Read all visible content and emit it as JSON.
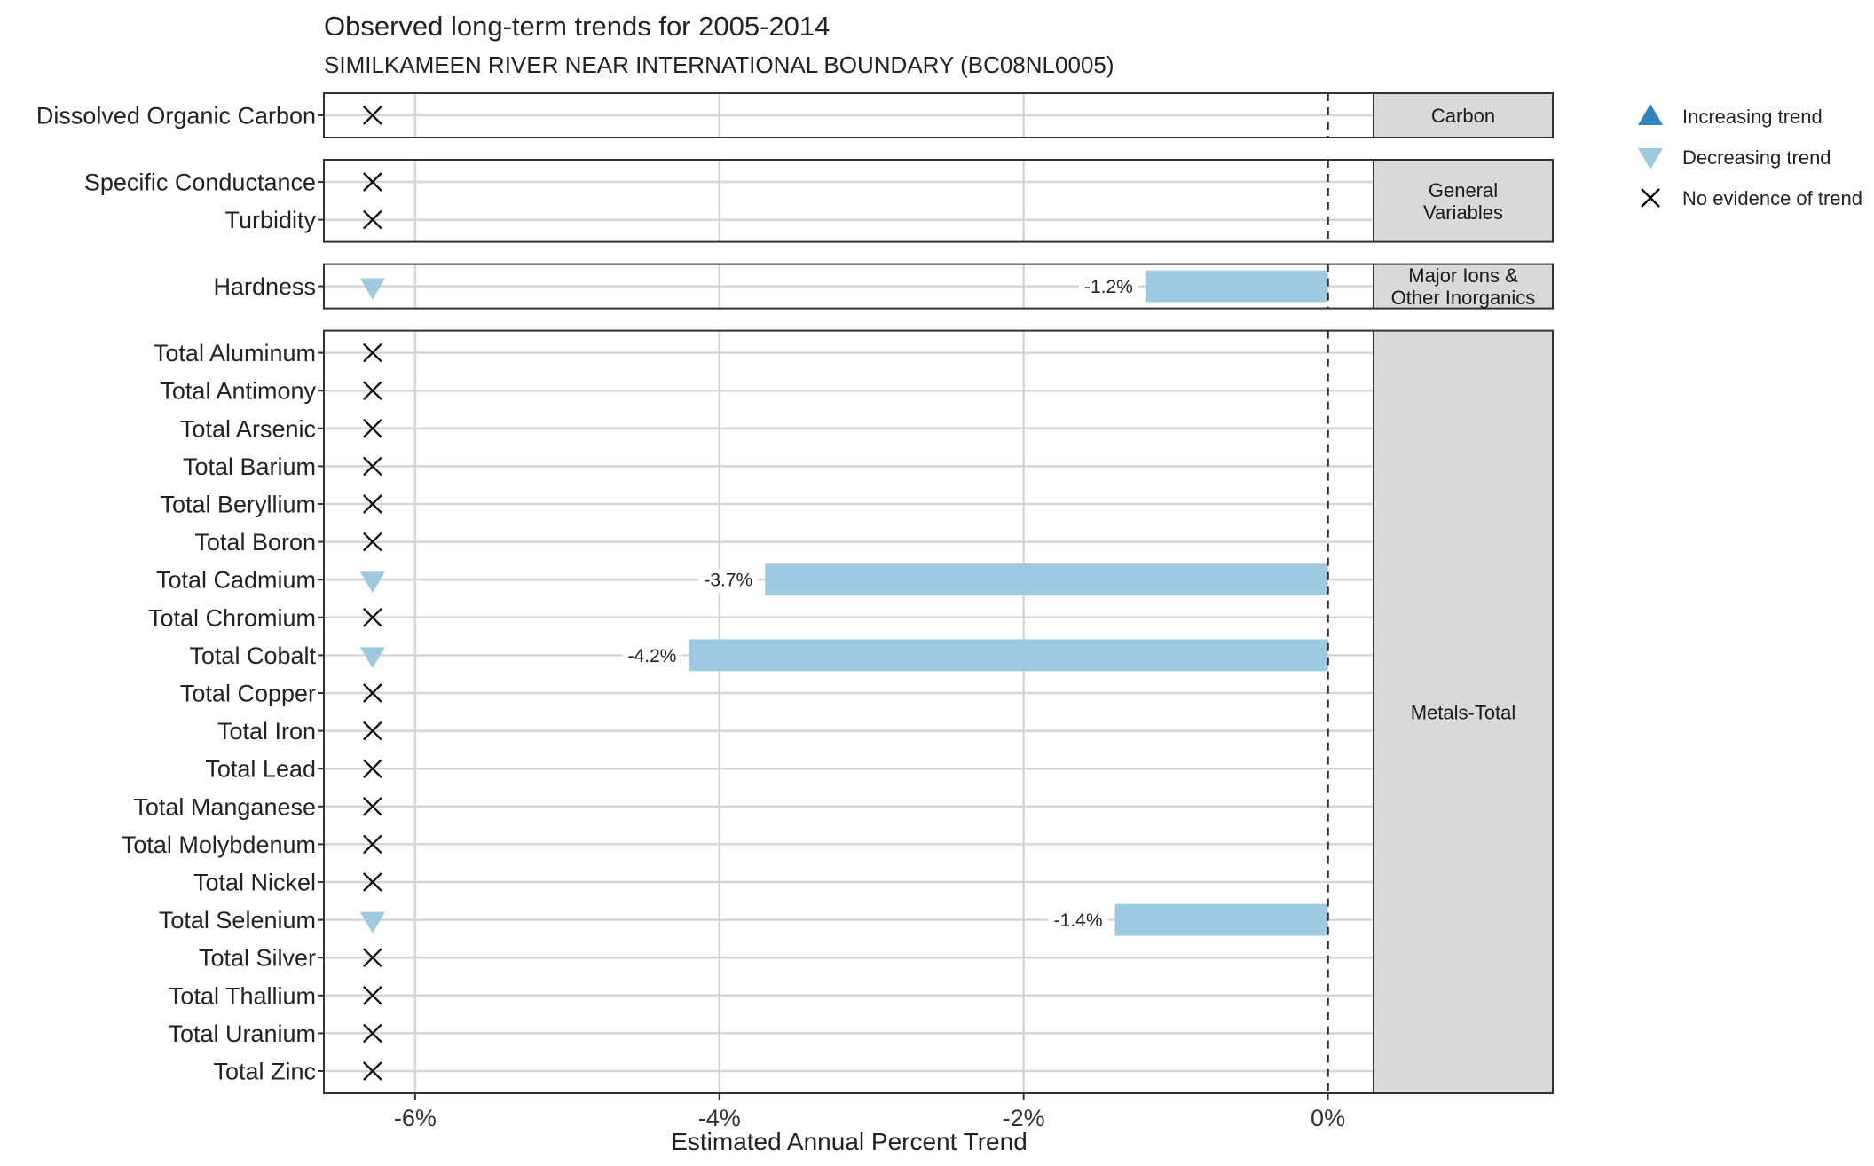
{
  "chart_data": {
    "type": "bar",
    "title": "Observed long-term trends for 2005-2014",
    "subtitle": "SIMILKAMEEN RIVER NEAR INTERNATIONAL BOUNDARY (BC08NL0005)",
    "xlabel": "Estimated Annual Percent Trend",
    "ylabel": "",
    "xlim": [
      -6.6,
      0.3
    ],
    "x_ticks": [
      -6,
      -4,
      -2,
      0
    ],
    "x_tick_labels": [
      "-6%",
      "-4%",
      "-2%",
      "0%"
    ],
    "grid": true,
    "reference_line": 0,
    "legend": {
      "placement": "right",
      "entries": [
        {
          "label": "Increasing trend",
          "marker": "triangle-up",
          "color": "#3182bd"
        },
        {
          "label": "Decreasing trend",
          "marker": "triangle-down",
          "color": "#9ecae1"
        },
        {
          "label": "No evidence of trend",
          "marker": "cross",
          "color": "#000000"
        }
      ]
    },
    "colors": {
      "bar": "#9ecae1",
      "increasing": "#3182bd",
      "decreasing": "#9ecae1",
      "panel_strip": "#d9d9d9"
    },
    "panels": [
      {
        "name": "Carbon",
        "strip_lines": [
          "Carbon"
        ],
        "rows": [
          {
            "label": "Dissolved Organic Carbon",
            "trend": "none",
            "value": null,
            "value_label": ""
          }
        ]
      },
      {
        "name": "General Variables",
        "strip_lines": [
          "General",
          "Variables"
        ],
        "rows": [
          {
            "label": "Specific Conductance",
            "trend": "none",
            "value": null,
            "value_label": ""
          },
          {
            "label": "Turbidity",
            "trend": "none",
            "value": null,
            "value_label": ""
          }
        ]
      },
      {
        "name": "Major Ions & Other Inorganics",
        "strip_lines": [
          "Major Ions &",
          "Other Inorganics"
        ],
        "rows": [
          {
            "label": "Hardness",
            "trend": "decreasing",
            "value": -1.2,
            "value_label": "-1.2%"
          }
        ]
      },
      {
        "name": "Metals-Total",
        "strip_lines": [
          "Metals-Total"
        ],
        "rows": [
          {
            "label": "Total Aluminum",
            "trend": "none",
            "value": null,
            "value_label": ""
          },
          {
            "label": "Total Antimony",
            "trend": "none",
            "value": null,
            "value_label": ""
          },
          {
            "label": "Total Arsenic",
            "trend": "none",
            "value": null,
            "value_label": ""
          },
          {
            "label": "Total Barium",
            "trend": "none",
            "value": null,
            "value_label": ""
          },
          {
            "label": "Total Beryllium",
            "trend": "none",
            "value": null,
            "value_label": ""
          },
          {
            "label": "Total Boron",
            "trend": "none",
            "value": null,
            "value_label": ""
          },
          {
            "label": "Total Cadmium",
            "trend": "decreasing",
            "value": -3.7,
            "value_label": "-3.7%"
          },
          {
            "label": "Total Chromium",
            "trend": "none",
            "value": null,
            "value_label": ""
          },
          {
            "label": "Total Cobalt",
            "trend": "decreasing",
            "value": -4.2,
            "value_label": "-4.2%"
          },
          {
            "label": "Total Copper",
            "trend": "none",
            "value": null,
            "value_label": ""
          },
          {
            "label": "Total Iron",
            "trend": "none",
            "value": null,
            "value_label": ""
          },
          {
            "label": "Total Lead",
            "trend": "none",
            "value": null,
            "value_label": ""
          },
          {
            "label": "Total Manganese",
            "trend": "none",
            "value": null,
            "value_label": ""
          },
          {
            "label": "Total Molybdenum",
            "trend": "none",
            "value": null,
            "value_label": ""
          },
          {
            "label": "Total Nickel",
            "trend": "none",
            "value": null,
            "value_label": ""
          },
          {
            "label": "Total Selenium",
            "trend": "decreasing",
            "value": -1.4,
            "value_label": "-1.4%"
          },
          {
            "label": "Total Silver",
            "trend": "none",
            "value": null,
            "value_label": ""
          },
          {
            "label": "Total Thallium",
            "trend": "none",
            "value": null,
            "value_label": ""
          },
          {
            "label": "Total Uranium",
            "trend": "none",
            "value": null,
            "value_label": ""
          },
          {
            "label": "Total Zinc",
            "trend": "none",
            "value": null,
            "value_label": ""
          }
        ]
      }
    ]
  }
}
